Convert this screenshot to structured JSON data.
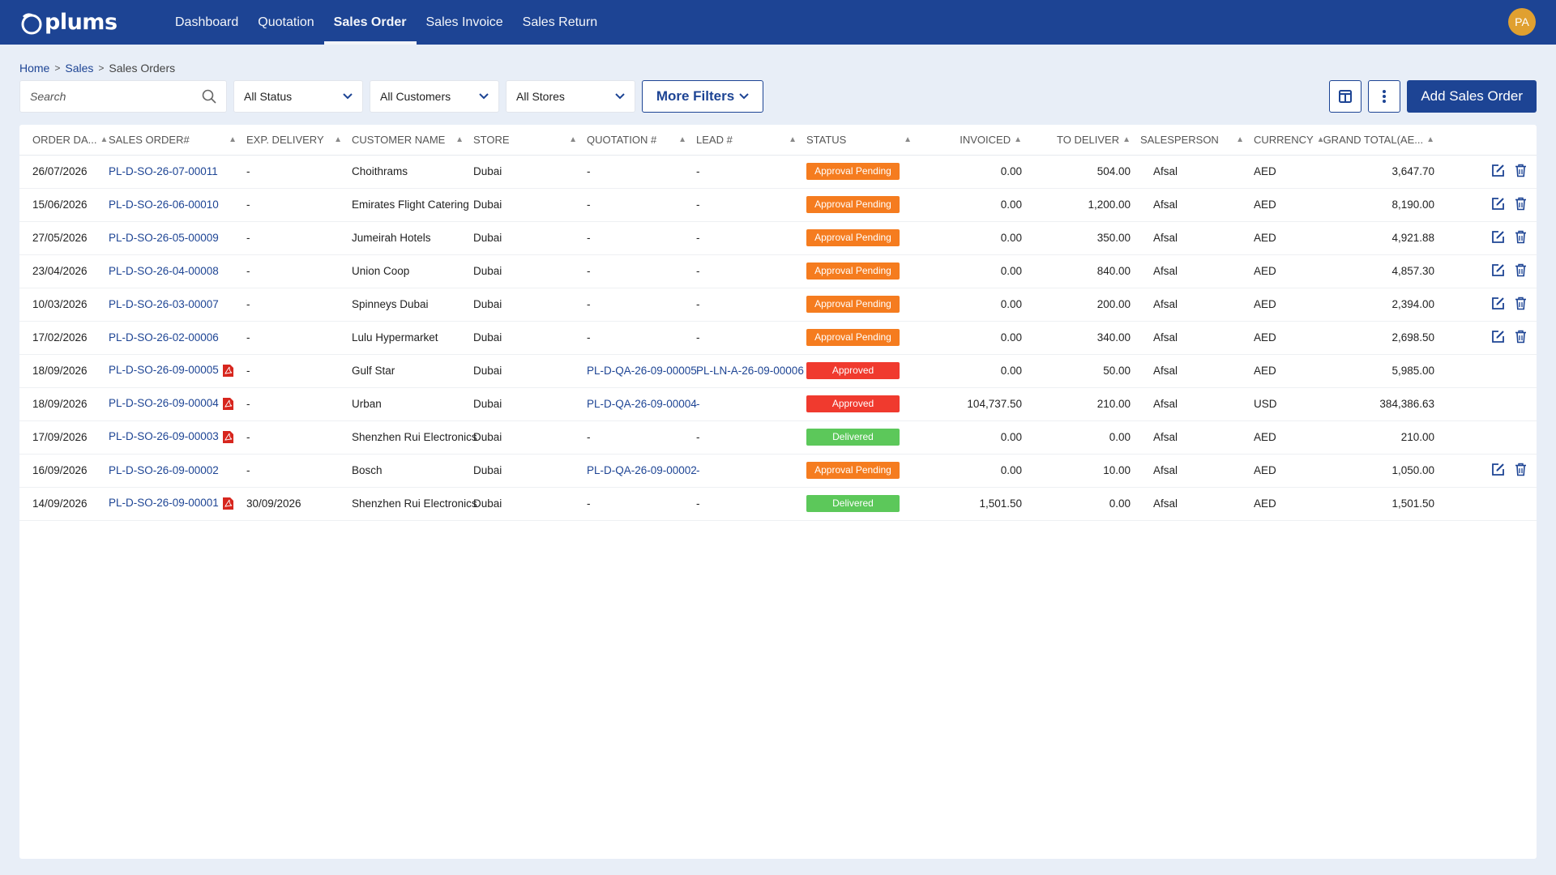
{
  "app": {
    "logo_text": "plums",
    "nav": [
      {
        "label": "Dashboard",
        "active": false
      },
      {
        "label": "Quotation",
        "active": false
      },
      {
        "label": "Sales Order",
        "active": true
      },
      {
        "label": "Sales Invoice",
        "active": false
      },
      {
        "label": "Sales Return",
        "active": false
      }
    ],
    "avatar_initials": "PA"
  },
  "breadcrumb": [
    "Home",
    "Sales",
    "Sales Orders"
  ],
  "filters": {
    "search_placeholder": "Search",
    "status": "All Status",
    "customers": "All Customers",
    "stores": "All Stores",
    "more_filters": "More Filters"
  },
  "actions": {
    "add_label": "Add Sales Order",
    "icons": [
      "columns-icon",
      "more-vertical-icon"
    ]
  },
  "colors": {
    "primary": "#1d4494",
    "approval_pending": "#f57c1f",
    "approved": "#f03a2e",
    "delivered": "#5cc85a"
  },
  "table": {
    "headers": [
      "ORDER DA...",
      "SALES ORDER#",
      "EXP. DELIVERY",
      "CUSTOMER NAME",
      "STORE",
      "QUOTATION #",
      "LEAD #",
      "STATUS",
      "INVOICED",
      "TO DELIVER",
      "SALESPERSON",
      "CURRENCY",
      "GRAND TOTAL(AE..."
    ],
    "rows": [
      {
        "date": "26/07/2026",
        "so": "PL-D-SO-26-07-00011",
        "pdf": false,
        "exp": "-",
        "customer": "Choithrams",
        "store": "Dubai",
        "quotation": "-",
        "quotation_link": false,
        "lead": "-",
        "lead_link": false,
        "status": "Approval Pending",
        "invoiced": "0.00",
        "to_deliver": "504.00",
        "salesperson": "Afsal",
        "currency": "AED",
        "total": "3,647.70",
        "editable": true
      },
      {
        "date": "15/06/2026",
        "so": "PL-D-SO-26-06-00010",
        "pdf": false,
        "exp": "-",
        "customer": "Emirates Flight Catering",
        "store": "Dubai",
        "quotation": "-",
        "quotation_link": false,
        "lead": "-",
        "lead_link": false,
        "status": "Approval Pending",
        "invoiced": "0.00",
        "to_deliver": "1,200.00",
        "salesperson": "Afsal",
        "currency": "AED",
        "total": "8,190.00",
        "editable": true
      },
      {
        "date": "27/05/2026",
        "so": "PL-D-SO-26-05-00009",
        "pdf": false,
        "exp": "-",
        "customer": "Jumeirah Hotels",
        "store": "Dubai",
        "quotation": "-",
        "quotation_link": false,
        "lead": "-",
        "lead_link": false,
        "status": "Approval Pending",
        "invoiced": "0.00",
        "to_deliver": "350.00",
        "salesperson": "Afsal",
        "currency": "AED",
        "total": "4,921.88",
        "editable": true
      },
      {
        "date": "23/04/2026",
        "so": "PL-D-SO-26-04-00008",
        "pdf": false,
        "exp": "-",
        "customer": "Union Coop",
        "store": "Dubai",
        "quotation": "-",
        "quotation_link": false,
        "lead": "-",
        "lead_link": false,
        "status": "Approval Pending",
        "invoiced": "0.00",
        "to_deliver": "840.00",
        "salesperson": "Afsal",
        "currency": "AED",
        "total": "4,857.30",
        "editable": true
      },
      {
        "date": "10/03/2026",
        "so": "PL-D-SO-26-03-00007",
        "pdf": false,
        "exp": "-",
        "customer": "Spinneys Dubai",
        "store": "Dubai",
        "quotation": "-",
        "quotation_link": false,
        "lead": "-",
        "lead_link": false,
        "status": "Approval Pending",
        "invoiced": "0.00",
        "to_deliver": "200.00",
        "salesperson": "Afsal",
        "currency": "AED",
        "total": "2,394.00",
        "editable": true
      },
      {
        "date": "17/02/2026",
        "so": "PL-D-SO-26-02-00006",
        "pdf": false,
        "exp": "-",
        "customer": "Lulu Hypermarket",
        "store": "Dubai",
        "quotation": "-",
        "quotation_link": false,
        "lead": "-",
        "lead_link": false,
        "status": "Approval Pending",
        "invoiced": "0.00",
        "to_deliver": "340.00",
        "salesperson": "Afsal",
        "currency": "AED",
        "total": "2,698.50",
        "editable": true
      },
      {
        "date": "18/09/2026",
        "so": "PL-D-SO-26-09-00005",
        "pdf": true,
        "exp": "-",
        "customer": "Gulf Star",
        "store": "Dubai",
        "quotation": "PL-D-QA-26-09-00005",
        "quotation_link": true,
        "lead": "PL-LN-A-26-09-00006",
        "lead_link": true,
        "status": "Approved",
        "invoiced": "0.00",
        "to_deliver": "50.00",
        "salesperson": "Afsal",
        "currency": "AED",
        "total": "5,985.00",
        "editable": false
      },
      {
        "date": "18/09/2026",
        "so": "PL-D-SO-26-09-00004",
        "pdf": true,
        "exp": "-",
        "customer": "Urban",
        "store": "Dubai",
        "quotation": "PL-D-QA-26-09-00004",
        "quotation_link": true,
        "lead": "-",
        "lead_link": true,
        "status": "Approved",
        "invoiced": "104,737.50",
        "to_deliver": "210.00",
        "salesperson": "Afsal",
        "currency": "USD",
        "total": "384,386.63",
        "editable": false
      },
      {
        "date": "17/09/2026",
        "so": "PL-D-SO-26-09-00003",
        "pdf": true,
        "exp": "-",
        "customer": "Shenzhen Rui Electronics",
        "store": "Dubai",
        "quotation": "-",
        "quotation_link": false,
        "lead": "-",
        "lead_link": false,
        "status": "Delivered",
        "invoiced": "0.00",
        "to_deliver": "0.00",
        "salesperson": "Afsal",
        "currency": "AED",
        "total": "210.00",
        "editable": false
      },
      {
        "date": "16/09/2026",
        "so": "PL-D-SO-26-09-00002",
        "pdf": false,
        "exp": "-",
        "customer": "Bosch",
        "store": "Dubai",
        "quotation": "PL-D-QA-26-09-00002",
        "quotation_link": true,
        "lead": "-",
        "lead_link": true,
        "status": "Approval Pending",
        "invoiced": "0.00",
        "to_deliver": "10.00",
        "salesperson": "Afsal",
        "currency": "AED",
        "total": "1,050.00",
        "editable": true
      },
      {
        "date": "14/09/2026",
        "so": "PL-D-SO-26-09-00001",
        "pdf": true,
        "exp": "30/09/2026",
        "customer": "Shenzhen Rui Electronics",
        "store": "Dubai",
        "quotation": "-",
        "quotation_link": false,
        "lead": "-",
        "lead_link": false,
        "status": "Delivered",
        "invoiced": "1,501.50",
        "to_deliver": "0.00",
        "salesperson": "Afsal",
        "currency": "AED",
        "total": "1,501.50",
        "editable": false
      }
    ]
  }
}
